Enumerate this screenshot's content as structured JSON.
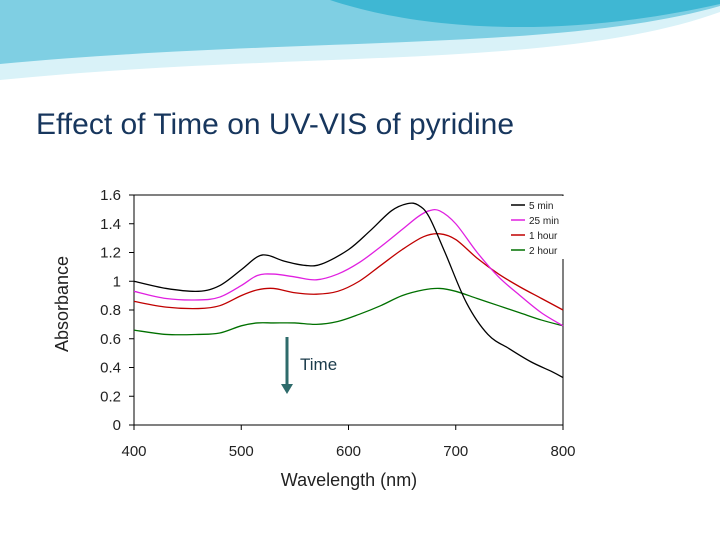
{
  "slide": {
    "title": "Effect of Time on UV-VIS of pyridine",
    "annotation": "Time"
  },
  "colors": {
    "banner_light": "#d9f2f8",
    "banner_mid": "#7fcfe3",
    "banner_dark": "#3fb7d3",
    "title": "#17365d",
    "arrow": "#2e6b6b"
  },
  "chart_data": {
    "type": "line",
    "xlabel": "Wavelength (nm)",
    "ylabel": "Absorbance",
    "xlim": [
      400,
      800
    ],
    "ylim": [
      0,
      1.6
    ],
    "xticks": [
      "400",
      "500",
      "600",
      "700",
      "800"
    ],
    "yticks": [
      "0",
      "0.2",
      "0.4",
      "0.6",
      "0.8",
      "1",
      "1.2",
      "1.4",
      "1.6"
    ],
    "grid": false,
    "legend_position": "top-right",
    "series": [
      {
        "name": "5 min",
        "color": "#000000",
        "x": [
          400,
          430,
          460,
          480,
          500,
          515,
          525,
          540,
          560,
          575,
          600,
          620,
          640,
          655,
          665,
          675,
          690,
          710,
          730,
          750,
          770,
          790,
          800
        ],
        "y": [
          1.0,
          0.95,
          0.93,
          0.97,
          1.08,
          1.17,
          1.18,
          1.14,
          1.11,
          1.12,
          1.22,
          1.35,
          1.49,
          1.54,
          1.53,
          1.45,
          1.2,
          0.85,
          0.63,
          0.53,
          0.44,
          0.37,
          0.33
        ]
      },
      {
        "name": "25 min",
        "color": "#e020e0",
        "x": [
          400,
          430,
          460,
          480,
          500,
          515,
          530,
          550,
          570,
          590,
          610,
          630,
          650,
          665,
          675,
          685,
          700,
          720,
          740,
          760,
          780,
          800
        ],
        "y": [
          0.93,
          0.88,
          0.87,
          0.89,
          0.97,
          1.04,
          1.05,
          1.03,
          1.01,
          1.05,
          1.13,
          1.24,
          1.36,
          1.45,
          1.49,
          1.49,
          1.4,
          1.2,
          1.03,
          0.9,
          0.78,
          0.69
        ]
      },
      {
        "name": "1 hour",
        "color": "#c00000",
        "x": [
          400,
          430,
          460,
          480,
          500,
          515,
          530,
          550,
          570,
          590,
          610,
          630,
          650,
          670,
          685,
          700,
          720,
          740,
          760,
          780,
          800
        ],
        "y": [
          0.86,
          0.82,
          0.81,
          0.83,
          0.9,
          0.94,
          0.95,
          0.92,
          0.91,
          0.93,
          1.0,
          1.11,
          1.22,
          1.31,
          1.33,
          1.29,
          1.16,
          1.05,
          0.96,
          0.88,
          0.8
        ]
      },
      {
        "name": "2 hour",
        "color": "#007000",
        "x": [
          400,
          430,
          460,
          480,
          500,
          515,
          530,
          550,
          570,
          590,
          610,
          630,
          650,
          670,
          685,
          700,
          720,
          740,
          760,
          780,
          800
        ],
        "y": [
          0.66,
          0.63,
          0.63,
          0.64,
          0.69,
          0.71,
          0.71,
          0.71,
          0.7,
          0.72,
          0.77,
          0.83,
          0.9,
          0.94,
          0.95,
          0.93,
          0.88,
          0.83,
          0.78,
          0.73,
          0.69
        ]
      }
    ]
  }
}
